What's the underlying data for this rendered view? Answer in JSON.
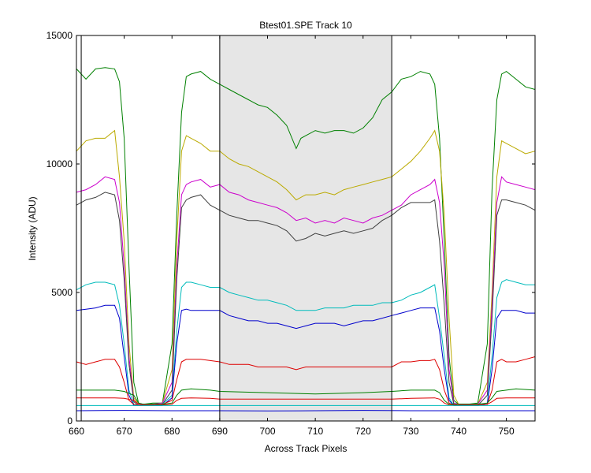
{
  "chart_data": {
    "type": "line",
    "title": "Btest01.SPE   Track 10",
    "xlabel": "Across Track Pixels",
    "ylabel": "Intensity (ADU)",
    "xlim": [
      660,
      756
    ],
    "ylim": [
      0,
      15000
    ],
    "xticks": [
      660,
      670,
      680,
      690,
      700,
      710,
      720,
      730,
      740,
      750
    ],
    "yticks": [
      0,
      5000,
      10000,
      15000
    ],
    "grid": false,
    "legend": "none",
    "shaded_region": [
      690,
      726
    ],
    "vertical_markers": [
      661,
      690,
      726
    ],
    "series": [
      {
        "color": "#008000",
        "x": [
          660,
          662,
          664,
          666,
          668,
          669,
          670,
          671,
          672,
          673,
          674,
          676,
          678,
          680,
          681,
          682,
          683,
          684,
          686,
          688,
          690,
          692,
          694,
          696,
          698,
          700,
          702,
          704,
          706,
          707,
          708,
          710,
          712,
          714,
          716,
          718,
          720,
          722,
          724,
          726,
          728,
          730,
          732,
          734,
          735,
          736,
          737,
          738,
          739,
          740,
          742,
          744,
          746,
          747,
          748,
          749,
          750,
          752,
          754,
          756
        ],
        "y": [
          13700,
          13300,
          13700,
          13750,
          13700,
          13200,
          11000,
          6000,
          1500,
          700,
          650,
          700,
          700,
          3000,
          8000,
          12000,
          13400,
          13500,
          13600,
          13300,
          13100,
          12900,
          12700,
          12500,
          12300,
          12200,
          11900,
          11500,
          10600,
          11000,
          11100,
          11300,
          11200,
          11300,
          11300,
          11200,
          11400,
          11800,
          12500,
          12800,
          13300,
          13400,
          13600,
          13500,
          13100,
          11000,
          7000,
          2500,
          800,
          650,
          650,
          700,
          3000,
          9000,
          12500,
          13500,
          13600,
          13300,
          13000,
          12900
        ]
      },
      {
        "color": "#bbaa00",
        "x": [
          660,
          662,
          664,
          666,
          668,
          669,
          670,
          671,
          672,
          673,
          674,
          676,
          678,
          680,
          681,
          682,
          683,
          684,
          686,
          688,
          690,
          692,
          694,
          696,
          698,
          700,
          702,
          704,
          706,
          708,
          710,
          712,
          714,
          716,
          718,
          720,
          722,
          724,
          726,
          728,
          730,
          732,
          734,
          735,
          736,
          737,
          738,
          739,
          740,
          742,
          744,
          746,
          747,
          748,
          749,
          750,
          752,
          754,
          756
        ],
        "y": [
          10500,
          10900,
          11000,
          11000,
          11300,
          9500,
          7000,
          3000,
          900,
          650,
          650,
          650,
          700,
          2000,
          7000,
          10500,
          11100,
          11000,
          10800,
          10500,
          10500,
          10200,
          10000,
          9900,
          9700,
          9500,
          9300,
          9000,
          8600,
          8800,
          8800,
          8900,
          8800,
          9000,
          9100,
          9200,
          9300,
          9400,
          9500,
          9800,
          10100,
          10500,
          11000,
          11300,
          10500,
          8000,
          4000,
          1000,
          650,
          650,
          650,
          1500,
          5000,
          9500,
          10900,
          10800,
          10600,
          10400,
          10500
        ]
      },
      {
        "color": "#cc00cc",
        "x": [
          660,
          662,
          664,
          666,
          668,
          669,
          670,
          671,
          672,
          673,
          674,
          676,
          678,
          680,
          681,
          682,
          683,
          684,
          686,
          688,
          690,
          692,
          694,
          696,
          698,
          700,
          702,
          704,
          706,
          708,
          710,
          712,
          714,
          716,
          718,
          720,
          722,
          724,
          726,
          728,
          730,
          732,
          734,
          735,
          736,
          737,
          738,
          739,
          740,
          742,
          744,
          746,
          747,
          748,
          749,
          750,
          752,
          754,
          756
        ],
        "y": [
          8900,
          9000,
          9200,
          9500,
          9400,
          8500,
          6000,
          2500,
          800,
          650,
          650,
          650,
          700,
          1500,
          6000,
          8800,
          9200,
          9300,
          9400,
          9100,
          9200,
          8900,
          8800,
          8600,
          8500,
          8400,
          8300,
          8100,
          7800,
          7900,
          7700,
          7800,
          7700,
          7900,
          7800,
          7700,
          7900,
          8000,
          8200,
          8400,
          8800,
          9000,
          9200,
          9400,
          8500,
          6000,
          2000,
          700,
          650,
          650,
          650,
          1200,
          4500,
          8500,
          9500,
          9300,
          9200,
          9100,
          9000
        ]
      },
      {
        "color": "#404040",
        "x": [
          660,
          662,
          664,
          666,
          668,
          669,
          670,
          671,
          672,
          673,
          674,
          676,
          678,
          680,
          681,
          682,
          683,
          684,
          686,
          688,
          690,
          692,
          694,
          696,
          698,
          700,
          702,
          704,
          706,
          708,
          710,
          712,
          714,
          716,
          718,
          720,
          722,
          724,
          726,
          728,
          730,
          732,
          734,
          735,
          736,
          737,
          738,
          739,
          740,
          742,
          744,
          746,
          747,
          748,
          749,
          750,
          752,
          754,
          756
        ],
        "y": [
          8400,
          8600,
          8700,
          8900,
          8800,
          7800,
          5500,
          2200,
          750,
          600,
          600,
          600,
          650,
          1200,
          5500,
          8300,
          8600,
          8700,
          8800,
          8400,
          8200,
          8000,
          7900,
          7800,
          7800,
          7700,
          7600,
          7400,
          7000,
          7100,
          7300,
          7200,
          7300,
          7400,
          7300,
          7400,
          7500,
          7800,
          8000,
          8300,
          8500,
          8500,
          8500,
          8600,
          7000,
          4500,
          1500,
          650,
          600,
          600,
          600,
          1000,
          4000,
          8000,
          8600,
          8600,
          8500,
          8400,
          8200
        ]
      },
      {
        "color": "#00bbbb",
        "x": [
          660,
          662,
          664,
          666,
          668,
          669,
          670,
          671,
          672,
          673,
          674,
          676,
          678,
          680,
          681,
          682,
          683,
          684,
          686,
          688,
          690,
          692,
          694,
          696,
          698,
          700,
          702,
          704,
          706,
          708,
          710,
          712,
          714,
          716,
          718,
          720,
          722,
          724,
          726,
          728,
          730,
          732,
          734,
          735,
          736,
          737,
          738,
          739,
          740,
          742,
          744,
          746,
          747,
          748,
          749,
          750,
          752,
          754,
          756
        ],
        "y": [
          5100,
          5300,
          5400,
          5400,
          5300,
          4500,
          3000,
          1200,
          650,
          600,
          600,
          600,
          650,
          1000,
          3500,
          5200,
          5400,
          5400,
          5300,
          5200,
          5200,
          5000,
          4900,
          4800,
          4700,
          4700,
          4600,
          4500,
          4300,
          4300,
          4300,
          4400,
          4400,
          4400,
          4500,
          4500,
          4500,
          4600,
          4600,
          4700,
          4900,
          5000,
          5200,
          5300,
          4000,
          2500,
          900,
          600,
          600,
          600,
          600,
          700,
          2500,
          4800,
          5400,
          5500,
          5400,
          5300,
          5300
        ]
      },
      {
        "color": "#0000cc",
        "x": [
          660,
          662,
          664,
          666,
          668,
          669,
          670,
          671,
          672,
          673,
          674,
          676,
          678,
          680,
          681,
          682,
          683,
          684,
          686,
          688,
          690,
          692,
          694,
          696,
          698,
          700,
          702,
          704,
          706,
          708,
          710,
          712,
          714,
          716,
          718,
          720,
          722,
          724,
          726,
          728,
          730,
          732,
          734,
          735,
          736,
          737,
          738,
          739,
          740,
          742,
          744,
          746,
          747,
          748,
          749,
          750,
          752,
          754,
          756
        ],
        "y": [
          4300,
          4350,
          4400,
          4500,
          4500,
          4000,
          2500,
          1000,
          600,
          600,
          600,
          600,
          600,
          900,
          3000,
          4300,
          4350,
          4300,
          4300,
          4300,
          4300,
          4100,
          4000,
          3900,
          3900,
          3800,
          3800,
          3700,
          3600,
          3700,
          3800,
          3800,
          3800,
          3700,
          3800,
          3900,
          3900,
          4000,
          4100,
          4200,
          4300,
          4400,
          4400,
          4400,
          3500,
          2000,
          800,
          600,
          600,
          600,
          600,
          650,
          2000,
          4000,
          4300,
          4300,
          4300,
          4200,
          4200
        ]
      },
      {
        "color": "#dd0000",
        "x": [
          660,
          662,
          664,
          666,
          668,
          669,
          670,
          671,
          672,
          673,
          674,
          676,
          678,
          680,
          681,
          682,
          683,
          684,
          686,
          688,
          690,
          692,
          694,
          696,
          698,
          700,
          702,
          704,
          706,
          708,
          710,
          712,
          714,
          716,
          718,
          720,
          722,
          724,
          726,
          728,
          730,
          732,
          734,
          735,
          736,
          737,
          738,
          739,
          740,
          742,
          744,
          746,
          747,
          748,
          749,
          750,
          752,
          754,
          756
        ],
        "y": [
          2300,
          2200,
          2300,
          2400,
          2400,
          2100,
          1500,
          800,
          650,
          600,
          600,
          600,
          650,
          800,
          1600,
          2300,
          2400,
          2400,
          2400,
          2350,
          2300,
          2200,
          2200,
          2200,
          2100,
          2100,
          2100,
          2100,
          2000,
          2100,
          2100,
          2100,
          2100,
          2100,
          2100,
          2100,
          2100,
          2100,
          2100,
          2300,
          2300,
          2350,
          2350,
          2400,
          2000,
          1200,
          700,
          600,
          600,
          600,
          600,
          650,
          1200,
          2300,
          2400,
          2300,
          2300,
          2400,
          2500
        ]
      },
      {
        "color": "#008000",
        "x": [
          660,
          664,
          668,
          670,
          672,
          673,
          674,
          676,
          678,
          680,
          681,
          682,
          684,
          688,
          690,
          700,
          710,
          720,
          726,
          730,
          735,
          736,
          737,
          738,
          740,
          742,
          744,
          746,
          747,
          748,
          750,
          752,
          756
        ],
        "y": [
          1200,
          1200,
          1200,
          1150,
          1000,
          700,
          650,
          650,
          650,
          700,
          1000,
          1200,
          1250,
          1200,
          1150,
          1100,
          1050,
          1100,
          1150,
          1200,
          1200,
          1100,
          800,
          650,
          650,
          650,
          650,
          700,
          900,
          1150,
          1200,
          1250,
          1200
        ]
      },
      {
        "color": "#dd0000",
        "x": [
          660,
          664,
          668,
          670,
          672,
          673,
          674,
          676,
          678,
          680,
          681,
          682,
          684,
          688,
          690,
          700,
          710,
          720,
          726,
          730,
          735,
          736,
          737,
          738,
          740,
          742,
          744,
          746,
          747,
          748,
          750,
          752,
          756
        ],
        "y": [
          900,
          900,
          900,
          880,
          800,
          650,
          620,
          620,
          620,
          650,
          800,
          880,
          900,
          880,
          850,
          850,
          850,
          850,
          850,
          880,
          900,
          850,
          700,
          620,
          620,
          620,
          620,
          650,
          750,
          880,
          900,
          900,
          900
        ]
      },
      {
        "color": "#00bbbb",
        "x": [
          660,
          756
        ],
        "y": [
          600,
          600
        ]
      },
      {
        "color": "#0000cc",
        "x": [
          660,
          670,
          680,
          690,
          700,
          710,
          720,
          730,
          740,
          750,
          756
        ],
        "y": [
          400,
          410,
          400,
          400,
          390,
          400,
          410,
          400,
          400,
          400,
          400
        ]
      }
    ]
  }
}
